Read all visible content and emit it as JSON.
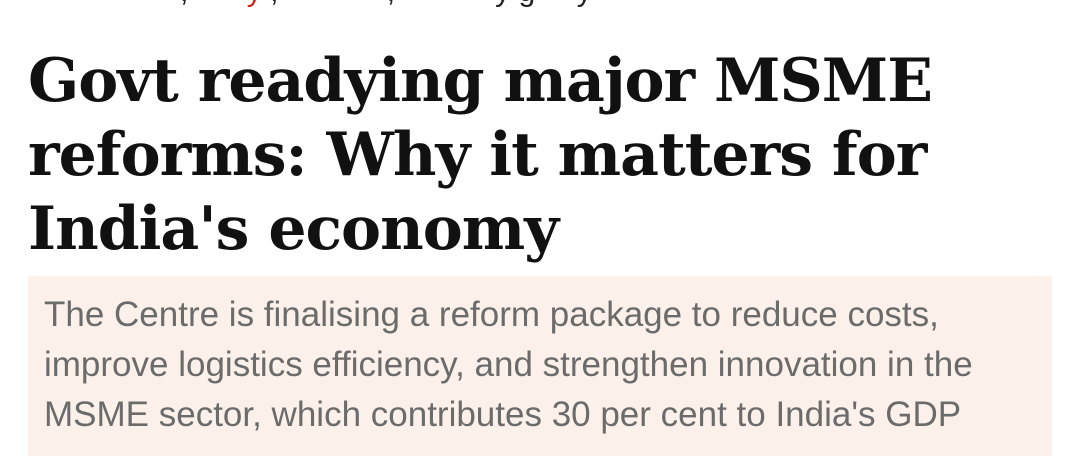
{
  "article": {
    "headline_lines": [
      "Govt readying major MSME",
      "reforms: Why it matters for",
      "India's economy"
    ],
    "summary_lines": [
      "The Centre is finalising a reform package to reduce costs,",
      "improve logistics efficiency, and strengthen innovation in the",
      "MSME sector, which contributes 30 per cent to India's GDP"
    ]
  },
  "colors": {
    "headline": "#111111",
    "summary_text": "#6b6b6b",
    "summary_background": "#fcf1ea",
    "accent": "#d0261d"
  }
}
